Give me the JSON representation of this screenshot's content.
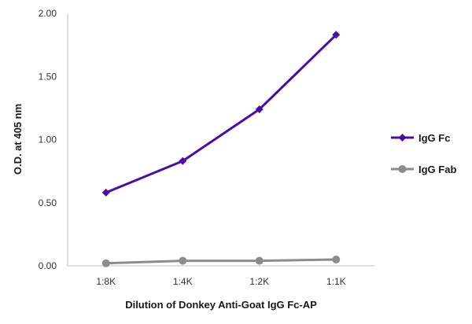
{
  "chart_data": {
    "type": "line",
    "title": "",
    "xlabel": "Dilution of Donkey Anti-Goat IgG Fc-AP",
    "ylabel": "O.D. at 405 nm",
    "categories": [
      "1:8K",
      "1:4K",
      "1:2K",
      "1:1K"
    ],
    "ylim": [
      0,
      2.0
    ],
    "yticks": [
      "0.00",
      "0.50",
      "1.00",
      "1.50",
      "2.00"
    ],
    "grid": false,
    "legend_position": "right",
    "series": [
      {
        "name": "IgG Fc",
        "values": [
          0.58,
          0.83,
          1.24,
          1.83
        ],
        "color": "#4b0ca6",
        "marker": "diamond"
      },
      {
        "name": "IgG Fab",
        "values": [
          0.02,
          0.04,
          0.04,
          0.05
        ],
        "color": "#8c8c8c",
        "marker": "circle"
      }
    ]
  }
}
